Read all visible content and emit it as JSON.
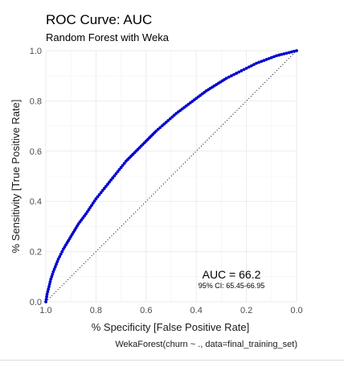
{
  "chart_data": {
    "type": "line",
    "title": "ROC Curve: AUC",
    "subtitle": "Random Forest with Weka",
    "xlabel": "% Specificity [False Positive Rate]",
    "ylabel": "% Sensitivity [True Positive Rate]",
    "caption": "WekaForest(churn ~ ., data=final_training_set)",
    "xlim": [
      1.0,
      0.0
    ],
    "ylim": [
      0.0,
      1.0
    ],
    "x_reversed": true,
    "x_ticks": [
      "1.0",
      "0.8",
      "0.6",
      "0.4",
      "0.2",
      "0.0"
    ],
    "y_ticks": [
      "0.0",
      "0.2",
      "0.4",
      "0.6",
      "0.8",
      "1.0"
    ],
    "grid": true,
    "series": [
      {
        "color": "#00bfff",
        "point_color": "#0000cd",
        "x": [
          1.0,
          0.995,
          0.99,
          0.98,
          0.97,
          0.95,
          0.93,
          0.9,
          0.87,
          0.84,
          0.8,
          0.76,
          0.72,
          0.68,
          0.64,
          0.6,
          0.56,
          0.52,
          0.48,
          0.44,
          0.4,
          0.36,
          0.32,
          0.28,
          0.24,
          0.2,
          0.16,
          0.12,
          0.08,
          0.04,
          0.02,
          0.0
        ],
        "y": [
          0.0,
          0.03,
          0.05,
          0.09,
          0.12,
          0.17,
          0.21,
          0.26,
          0.31,
          0.35,
          0.41,
          0.46,
          0.51,
          0.56,
          0.6,
          0.64,
          0.68,
          0.715,
          0.75,
          0.78,
          0.81,
          0.84,
          0.865,
          0.89,
          0.91,
          0.93,
          0.95,
          0.965,
          0.98,
          0.99,
          0.995,
          1.0
        ]
      }
    ],
    "reference_line": {
      "style": "dotted",
      "color": "#000000",
      "from": [
        1.0,
        0.0
      ],
      "to": [
        0.0,
        1.0
      ]
    },
    "annotations": {
      "auc": "AUC = 66.2",
      "ci": "95% CI: 65.45-66.95"
    }
  }
}
